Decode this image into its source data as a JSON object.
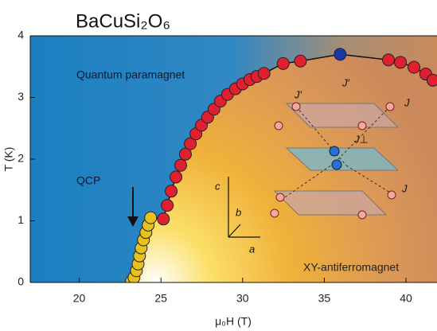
{
  "chart_data": {
    "type": "scatter",
    "title": "BaCuSi₂O₆",
    "x_label": "μ₀H (T)",
    "y_label": "T (K)",
    "annotations": [
      "Quantum paramagnet",
      "QCP",
      "XY-antiferromagnet"
    ],
    "inset_labels": [
      "J′",
      "J′",
      "J",
      "J",
      "J⊥",
      "c",
      "b",
      "a"
    ],
    "xlim": [
      17,
      41.9
    ],
    "ylim": [
      0,
      4
    ],
    "xticks": [
      20,
      25,
      30,
      35,
      40
    ],
    "yticks": [
      0,
      1,
      2,
      3,
      4
    ],
    "line_color": "#111111",
    "series": [
      {
        "x": [
          23.2,
          23.35,
          23.5,
          23.6,
          23.69,
          23.79,
          23.93,
          24.08,
          24.22,
          24.37,
          25.15,
          25.39,
          25.63,
          25.92,
          26.21,
          26.5,
          26.8,
          27.14,
          27.48,
          27.86,
          28.25,
          28.64,
          29.08,
          29.56,
          30.0,
          30.44,
          30.87,
          31.31,
          32.48,
          33.54,
          35.97,
          38.93,
          39.66,
          40.49,
          41.21,
          41.65
        ],
        "values": [
          0.02,
          0.08,
          0.19,
          0.3,
          0.43,
          0.56,
          0.69,
          0.81,
          0.93,
          1.05,
          1.03,
          1.25,
          1.48,
          1.71,
          1.9,
          2.08,
          2.25,
          2.41,
          2.55,
          2.68,
          2.81,
          2.94,
          3.05,
          3.14,
          3.22,
          3.29,
          3.34,
          3.39,
          3.55,
          3.59,
          3.7,
          3.61,
          3.57,
          3.49,
          3.38,
          3.28
        ],
        "marker_colors": [
          "#e8c21a",
          "#e8c21a",
          "#e8c21a",
          "#e8c21a",
          "#e8c21a",
          "#e8c21a",
          "#e8c21a",
          "#e8c21a",
          "#e8c21a",
          "#e8c21a",
          "#e02030",
          "#e02030",
          "#e02030",
          "#e02030",
          "#e02030",
          "#e02030",
          "#e02030",
          "#e02030",
          "#e02030",
          "#e02030",
          "#e02030",
          "#e02030",
          "#e02030",
          "#e02030",
          "#e02030",
          "#e02030",
          "#e02030",
          "#e02030",
          "#e02030",
          "#e02030",
          "#1838a8",
          "#e02030",
          "#e02030",
          "#e02030",
          "#e02030",
          "#e02030"
        ]
      }
    ]
  }
}
